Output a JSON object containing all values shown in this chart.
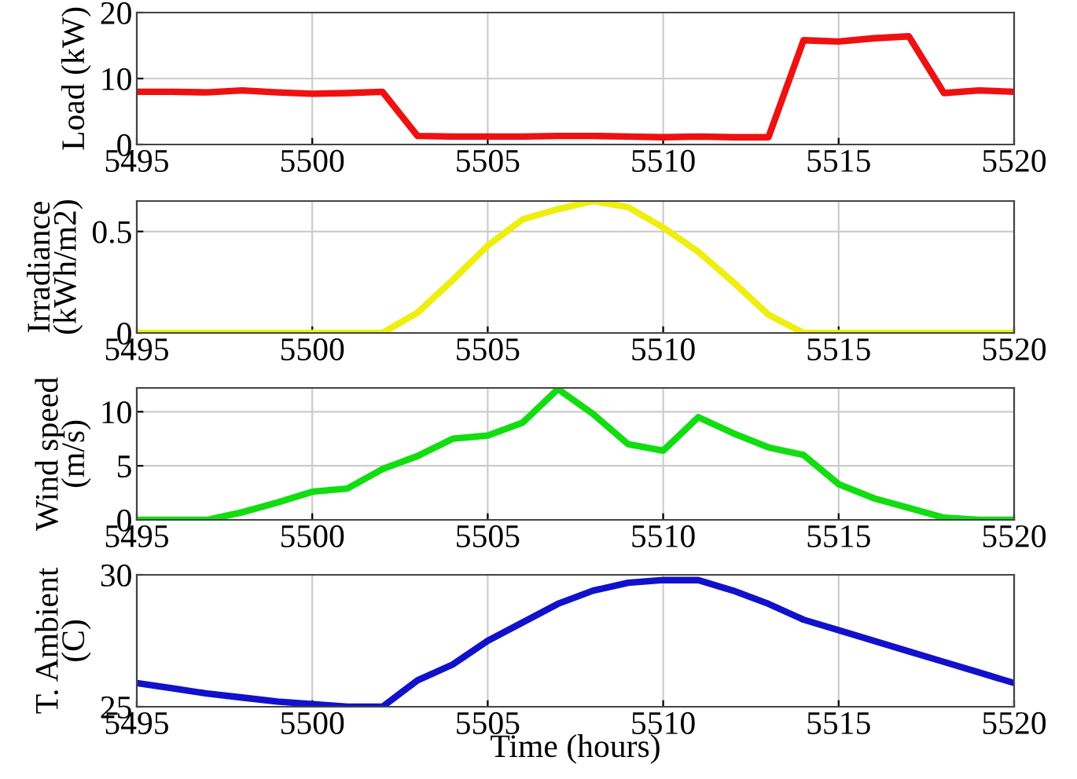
{
  "chart_data": [
    {
      "type": "line",
      "ylabel": "Load (kW)",
      "x": [
        5495,
        5496,
        5497,
        5498,
        5499,
        5500,
        5501,
        5502,
        5503,
        5504,
        5505,
        5506,
        5507,
        5508,
        5509,
        5510,
        5511,
        5512,
        5513,
        5514,
        5515,
        5516,
        5517,
        5518,
        5519,
        5520
      ],
      "series": [
        {
          "color": "#ee1111",
          "values": [
            8,
            8,
            7.9,
            8.2,
            7.9,
            7.7,
            7.8,
            8,
            1.3,
            1.2,
            1.2,
            1.2,
            1.3,
            1.3,
            1.2,
            1.1,
            1.2,
            1.1,
            1.1,
            15.8,
            15.6,
            16.1,
            16.4,
            7.8,
            8.2,
            8
          ]
        }
      ],
      "xlim": [
        5495,
        5520
      ],
      "xticks": [
        5495,
        5500,
        5505,
        5510,
        5515,
        5520
      ],
      "ylim": [
        0,
        20
      ],
      "yticks": [
        0,
        10,
        20
      ],
      "grid": true
    },
    {
      "type": "line",
      "ylabel": "Irradiance\n(kWh/m2)",
      "x": [
        5495,
        5496,
        5497,
        5498,
        5499,
        5500,
        5501,
        5502,
        5503,
        5504,
        5505,
        5506,
        5507,
        5508,
        5509,
        5510,
        5511,
        5512,
        5513,
        5514,
        5515,
        5516,
        5517,
        5518,
        5519,
        5520
      ],
      "series": [
        {
          "color": "#eeee11",
          "values": [
            0,
            0,
            0,
            0,
            0,
            0,
            0,
            0,
            0.1,
            0.26,
            0.43,
            0.56,
            0.61,
            0.65,
            0.62,
            0.52,
            0.4,
            0.25,
            0.09,
            0,
            0,
            0,
            0,
            0,
            0,
            0
          ]
        }
      ],
      "xlim": [
        5495,
        5520
      ],
      "xticks": [
        5495,
        5500,
        5505,
        5510,
        5515,
        5520
      ],
      "ylim": [
        0,
        0.65
      ],
      "yticks": [
        0,
        0.5
      ],
      "grid": true
    },
    {
      "type": "line",
      "ylabel": "Wind speed\n(m/s)",
      "x": [
        5495,
        5496,
        5497,
        5498,
        5499,
        5500,
        5501,
        5502,
        5503,
        5504,
        5505,
        5506,
        5507,
        5508,
        5509,
        5510,
        5511,
        5512,
        5513,
        5514,
        5515,
        5516,
        5517,
        5518,
        5519,
        5520
      ],
      "series": [
        {
          "color": "#11dd11",
          "values": [
            0,
            0,
            0,
            0.7,
            1.6,
            2.6,
            2.9,
            4.7,
            5.9,
            7.5,
            7.8,
            9,
            12.1,
            9.8,
            7,
            6.4,
            9.5,
            8,
            6.7,
            6,
            3.3,
            2,
            1.1,
            0.2,
            0,
            0
          ]
        }
      ],
      "xlim": [
        5495,
        5520
      ],
      "xticks": [
        5495,
        5500,
        5505,
        5510,
        5515,
        5520
      ],
      "ylim": [
        0,
        12.2
      ],
      "yticks": [
        0,
        5,
        10
      ],
      "grid": true
    },
    {
      "type": "line",
      "ylabel": "T. Ambient\n(C)",
      "xlabel": "Time (hours)",
      "x": [
        5495,
        5496,
        5497,
        5498,
        5499,
        5500,
        5501,
        5502,
        5503,
        5504,
        5505,
        5506,
        5507,
        5508,
        5509,
        5510,
        5511,
        5512,
        5513,
        5514,
        5515,
        5516,
        5517,
        5518,
        5519,
        5520
      ],
      "series": [
        {
          "color": "#1111cc",
          "values": [
            25.9,
            25.7,
            25.5,
            25.35,
            25.2,
            25.1,
            25.0,
            25.0,
            26.0,
            26.6,
            27.5,
            28.2,
            28.9,
            29.4,
            29.7,
            29.8,
            29.8,
            29.4,
            28.9,
            28.3,
            27.9,
            27.5,
            27.1,
            26.7,
            26.3,
            25.9
          ]
        }
      ],
      "xlim": [
        5495,
        5520
      ],
      "xticks": [
        5495,
        5500,
        5505,
        5510,
        5515,
        5520
      ],
      "ylim": [
        25,
        30
      ],
      "yticks": [
        25,
        30
      ],
      "grid": true
    }
  ]
}
